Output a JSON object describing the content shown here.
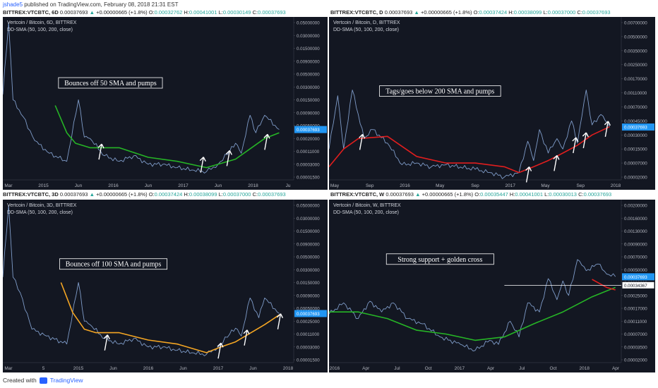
{
  "header": {
    "user": "jshade5",
    "text": "published on TradingView.com, February 08, 2018 21:31 EST"
  },
  "footer": {
    "created_with": "Created with",
    "brand": "TradingView",
    "logo_icon": "tradingview-logo-icon"
  },
  "panels": [
    {
      "symbol": "BITTREX:VTCBTC, 6D",
      "last": "0.00037693",
      "change": "+0.00000665 (+1.8%)",
      "ohlc": {
        "O": "0.00032762",
        "H": "0.00041001",
        "L": "0.00030149",
        "C": "0.00037693"
      },
      "title": "Vertcoin / Bitcoin, 6D, BITTREX",
      "indicator": "DD-SMA (50, 100, 200, close)",
      "annotation": "Bounces off 50 SMA and pumps"
    },
    {
      "symbol": "BITTREX:VTCBTC, D",
      "last": "0.00037693",
      "change": "+0.00000665 (+1.8%)",
      "ohlc": {
        "O": "0.00037424",
        "H": "0.00038099",
        "L": "0.00037000",
        "C": "0.00037693"
      },
      "title": "Vertcoin / Bitcoin, D, BITTREX",
      "indicator": "DD-SMA (50, 100, 200, close)",
      "annotation": "Tags/goes below 200 SMA and pumps"
    },
    {
      "symbol": "BITTREX:VTCBTC, 3D",
      "last": "0.00037693",
      "change": "+0.00000665 (+1.8%)",
      "ohlc": {
        "O": "0.00037424",
        "H": "0.00038099",
        "L": "0.00037000",
        "C": "0.00037693"
      },
      "title": "Vertcoin / Bitcoin, 3D, BITTREX",
      "indicator": "DD-SMA (50, 100, 200, close)",
      "annotation": "Bounces off 100 SMA and pumps"
    },
    {
      "symbol": "BITTREX:VTCBTC, W",
      "last": "0.00037693",
      "change": "+0.00000665 (+1.8%)",
      "ohlc": {
        "O": "0.00035447",
        "H": "0.00041001",
        "L": "0.00030013",
        "C": "0.00037693"
      },
      "title": "Vertcoin / Bitcoin, W, BITTREX",
      "indicator": "DD-SMA (50, 100, 200, close)",
      "annotation": "Strong support + golden cross"
    }
  ],
  "colors": {
    "background": "#131722",
    "price": "#7f9cc9",
    "sma50": "#26b526",
    "sma100": "#f5a623",
    "sma200": "#e01e1e",
    "marker": "#2196f3",
    "arrow": "#ffffff"
  },
  "chart_data": [
    {
      "type": "line",
      "title": "Vertcoin / Bitcoin, 6D, BITTREX",
      "x_ticks": [
        "Mar",
        "2015",
        "Jun",
        "2016",
        "Jun",
        "2017",
        "Jun",
        "2018",
        "Ju"
      ],
      "y_ticks": [
        "0.05000000",
        "0.03000000",
        "0.01500000",
        "0.00900000",
        "0.00500000",
        "0.00300000",
        "0.00150000",
        "0.00090000",
        "0.00050000",
        "0.00020000",
        "0.00011000",
        "0.00003000",
        "0.00001500"
      ],
      "last_value": "0.00037693",
      "log_scale": true,
      "series": [
        {
          "role": "price",
          "x": [
            0,
            0.02,
            0.035,
            0.07,
            0.11,
            0.16,
            0.22,
            0.26,
            0.28,
            0.3,
            0.35,
            0.4,
            0.45,
            0.5,
            0.55,
            0.6,
            0.65,
            0.7,
            0.74,
            0.78,
            0.8,
            0.82,
            0.85,
            0.87,
            0.9,
            0.95
          ],
          "y": [
            0.002,
            0.05,
            0.0015,
            0.00075,
            0.00018,
            9e-05,
            4e-05,
            0.0015,
            0.00022,
            0.0002,
            7e-05,
            4e-05,
            7e-05,
            3e-05,
            3e-05,
            2.5e-05,
            2.2e-05,
            2e-05,
            3e-05,
            0.00011,
            0.00016,
            9e-05,
            0.0008,
            0.0003,
            0.0008,
            0.00038
          ]
        },
        {
          "role": "sma",
          "name": "50",
          "x": [
            0.18,
            0.22,
            0.25,
            0.3,
            0.4,
            0.5,
            0.6,
            0.7,
            0.8,
            0.9,
            0.95
          ],
          "y": [
            0.0012,
            0.0003,
            0.00016,
            0.00013,
            0.00013,
            6e-05,
            4e-05,
            2.5e-05,
            5e-05,
            0.0002,
            0.0003
          ]
        }
      ],
      "annotation": "Bounces off 50 SMA and pumps"
    },
    {
      "type": "line",
      "title": "Vertcoin / Bitcoin, D, BITTREX",
      "x_ticks": [
        "May",
        "Sep",
        "2016",
        "May",
        "Sep",
        "2017",
        "May",
        "Sep",
        "2018"
      ],
      "y_ticks": [
        "0.00700000",
        "0.00500000",
        "0.00350000",
        "0.00250000",
        "0.00170000",
        "0.00110000",
        "0.00070000",
        "0.00045000",
        "0.00030000",
        "0.00015000",
        "0.00007000",
        "0.00002000"
      ],
      "last_value": "0.00037693",
      "log_scale": true,
      "series": [
        {
          "role": "price",
          "x": [
            0,
            0.03,
            0.05,
            0.08,
            0.12,
            0.15,
            0.2,
            0.25,
            0.3,
            0.35,
            0.4,
            0.5,
            0.55,
            0.6,
            0.65,
            0.68,
            0.7,
            0.72,
            0.75,
            0.78,
            0.8,
            0.83,
            0.85,
            0.88,
            0.9,
            0.93,
            0.96
          ],
          "y": [
            0.00015,
            0.001,
            0.00015,
            0.0012,
            0.00025,
            0.00035,
            0.0002,
            6e-05,
            7e-05,
            5e-05,
            6e-05,
            4e-05,
            3e-05,
            2e-05,
            3e-05,
            0.00022,
            8e-05,
            0.00035,
            0.00012,
            0.00025,
            0.00015,
            0.00045,
            0.0002,
            0.0012,
            0.0004,
            0.00055,
            0.00038
          ]
        },
        {
          "role": "sma",
          "name": "200",
          "x": [
            0,
            0.05,
            0.1,
            0.2,
            0.3,
            0.4,
            0.5,
            0.6,
            0.65,
            0.7,
            0.75,
            0.8,
            0.85,
            0.9,
            0.96
          ],
          "y": [
            5e-05,
            0.00015,
            0.00025,
            0.00028,
            0.0001,
            7e-05,
            7e-05,
            5e-05,
            3e-05,
            5e-05,
            8e-05,
            0.00012,
            0.00018,
            0.0003,
            0.00038
          ]
        }
      ],
      "annotation": "Tags/goes below 200 SMA and pumps"
    },
    {
      "type": "line",
      "title": "Vertcoin / Bitcoin, 3D, BITTREX",
      "x_ticks": [
        "Mar",
        "5",
        "2015",
        "Jun",
        "2016",
        "Jun",
        "2017",
        "Jun",
        "2018"
      ],
      "y_ticks": [
        "0.05000000",
        "0.03000000",
        "0.01500000",
        "0.00900000",
        "0.00500000",
        "0.00300000",
        "0.00150000",
        "0.00090000",
        "0.00050000",
        "0.00025000",
        "0.00011000",
        "0.00003000",
        "0.00001500"
      ],
      "last_value": "0.00037693",
      "log_scale": true,
      "series": [
        {
          "role": "price",
          "x": [
            0,
            0.02,
            0.035,
            0.06,
            0.1,
            0.15,
            0.22,
            0.26,
            0.28,
            0.3,
            0.35,
            0.4,
            0.45,
            0.5,
            0.55,
            0.6,
            0.65,
            0.7,
            0.74,
            0.78,
            0.8,
            0.82,
            0.85,
            0.88,
            0.9,
            0.95
          ],
          "y": [
            0.002,
            0.05,
            0.002,
            0.001,
            0.00015,
            9e-05,
            4e-05,
            0.0015,
            0.00025,
            0.0002,
            7e-05,
            4e-05,
            7e-05,
            3e-05,
            3e-05,
            2.5e-05,
            2.2e-05,
            2e-05,
            3e-05,
            0.00011,
            0.00016,
            9e-05,
            0.0008,
            0.0003,
            0.0008,
            0.00038
          ]
        },
        {
          "role": "sma",
          "name": "100",
          "x": [
            0.2,
            0.24,
            0.28,
            0.32,
            0.4,
            0.5,
            0.6,
            0.7,
            0.75,
            0.8,
            0.9,
            0.95
          ],
          "y": [
            0.0015,
            0.0004,
            0.00015,
            0.00012,
            0.00012,
            6e-05,
            4e-05,
            2.2e-05,
            3e-05,
            5e-05,
            0.0002,
            0.00035
          ]
        }
      ],
      "annotation": "Bounces off 100 SMA and pumps"
    },
    {
      "type": "line",
      "title": "Vertcoin / Bitcoin, W, BITTREX",
      "x_ticks": [
        "2016",
        "Apr",
        "Jul",
        "Oct",
        "2017",
        "Apr",
        "Jul",
        "Oct",
        "2018",
        "Apr"
      ],
      "y_ticks": [
        "0.00200000",
        "0.00160000",
        "0.00130000",
        "0.00090000",
        "0.00070000",
        "0.00050000",
        "0.00030000",
        "0.00025000",
        "0.00017000",
        "0.00011000",
        "0.00007000",
        "0.00003500",
        "0.00002000"
      ],
      "last_value": "0.00037693",
      "second_marker": "0.00034367",
      "series": [
        {
          "role": "price",
          "x": [
            0,
            0.05,
            0.1,
            0.14,
            0.18,
            0.22,
            0.27,
            0.32,
            0.38,
            0.45,
            0.5,
            0.55,
            0.58,
            0.62,
            0.65,
            0.68,
            0.72,
            0.75,
            0.78,
            0.8,
            0.82,
            0.85,
            0.88,
            0.92,
            0.95,
            0.98
          ],
          "y": [
            0.00014,
            0.0002,
            0.00012,
            0.00021,
            0.00015,
            0.0002,
            0.00012,
            0.0001,
            6e-05,
            4e-05,
            3e-05,
            5e-05,
            4e-05,
            0.00011,
            6e-05,
            0.0002,
            0.00015,
            0.00035,
            0.00022,
            0.00032,
            0.00025,
            0.00065,
            0.00048,
            0.00058,
            0.00042,
            0.00038
          ]
        },
        {
          "role": "sma",
          "name": "50",
          "x": [
            0,
            0.1,
            0.2,
            0.3,
            0.4,
            0.5,
            0.6,
            0.7,
            0.8,
            0.9,
            0.98
          ],
          "y": [
            0.00015,
            0.00015,
            0.00012,
            8e-05,
            7e-05,
            5e-05,
            6e-05,
            0.0001,
            0.00015,
            0.00024,
            0.00028
          ]
        },
        {
          "role": "sma",
          "name": "200",
          "x": [
            0.9,
            0.95,
            0.98
          ],
          "y": [
            0.00034,
            0.00028,
            0.00027
          ]
        }
      ],
      "annotation": "Strong support + golden cross"
    }
  ]
}
